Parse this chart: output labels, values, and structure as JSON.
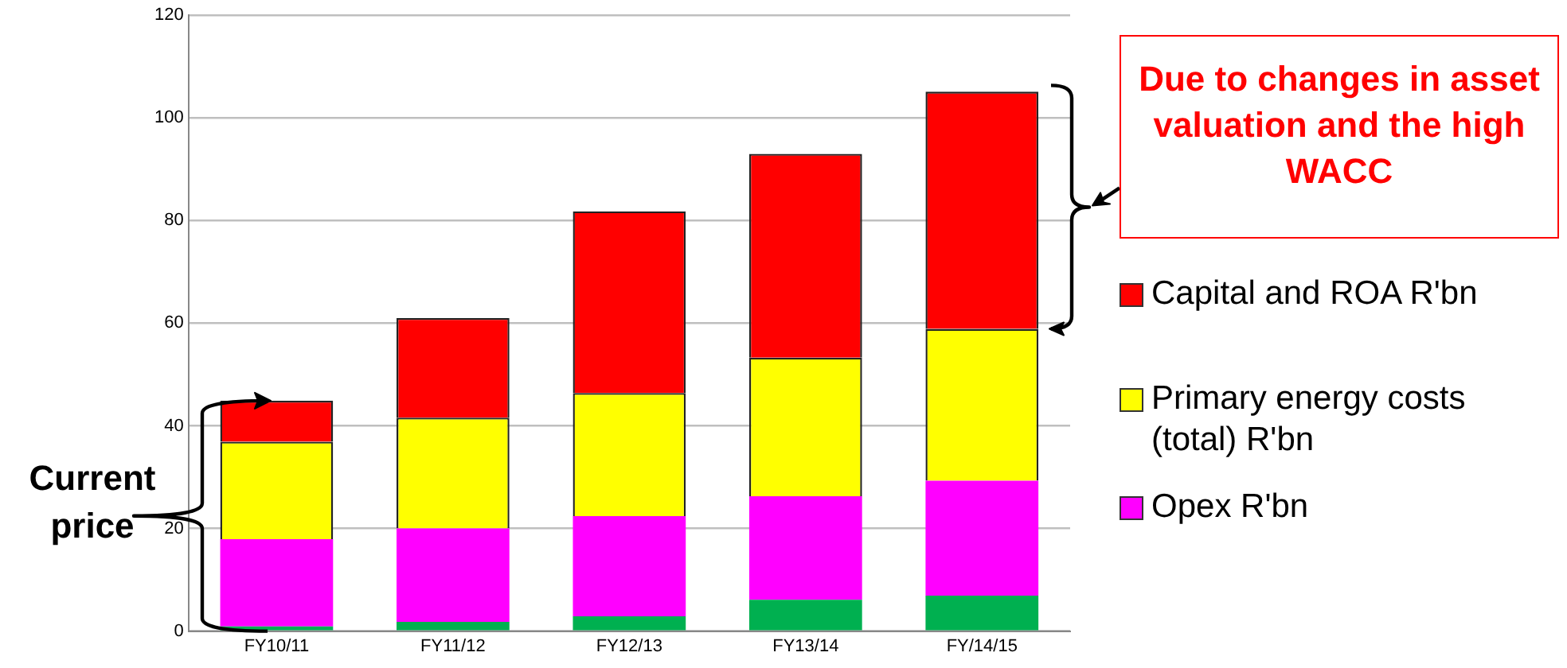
{
  "chart_data": {
    "type": "bar",
    "stacked": true,
    "categories": [
      "FY10/11",
      "FY11/12",
      "FY12/13",
      "FY13/14",
      "FY/14/15"
    ],
    "series": [
      {
        "color": "#00b050",
        "values": [
          0.9,
          1.8,
          2.9,
          6.1,
          6.9
        ]
      },
      {
        "name": "Opex R'bn",
        "color": "#ff00ff",
        "values": [
          17,
          18.2,
          19.5,
          20.2,
          22.4
        ]
      },
      {
        "name": "Primary energy costs (total) R'bn",
        "color": "#ffff00",
        "values": [
          19,
          21.6,
          24,
          27,
          29.6
        ]
      },
      {
        "name": "Capital and ROA R'bn",
        "color": "#ff0000",
        "values": [
          8,
          19.4,
          35.4,
          39.7,
          46.2
        ]
      }
    ],
    "ylim": [
      0,
      120
    ],
    "yticks": [
      0,
      20,
      40,
      60,
      80,
      100,
      120
    ],
    "grid": "y",
    "legend": "right",
    "annotations": [
      "Due to changes in asset valuation and the high WACC",
      "Current price"
    ]
  }
}
